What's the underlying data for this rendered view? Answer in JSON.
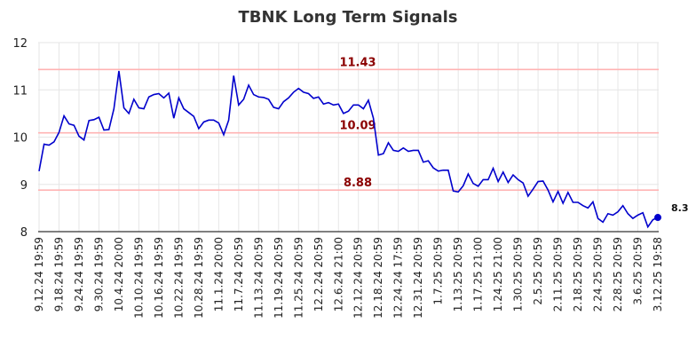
{
  "chart_data": {
    "type": "line",
    "title": "TBNK Long Term Signals",
    "ylim": [
      8,
      12
    ],
    "yticks": [
      "8",
      "9",
      "10",
      "11",
      "12"
    ],
    "grid": true,
    "line_color": "#0000cc",
    "reference_color": "#ffb3b3",
    "reference_label_color": "#8b0000",
    "reference_lines": [
      {
        "value": 11.43,
        "label": "11.43"
      },
      {
        "value": 10.09,
        "label": "10.09"
      },
      {
        "value": 8.88,
        "label": "8.88"
      }
    ],
    "last_value_label": "8.3",
    "xtick_labels": [
      "9.12.24 19:59",
      "9.18.24 19:59",
      "9.24.24 19:59",
      "9.30.24 19:59",
      "10.4.24 20:00",
      "10.10.24 19:59",
      "10.16.24 19:59",
      "10.22.24 19:59",
      "10.28.24 19:59",
      "11.1.24 20:00",
      "11.7.24 20:59",
      "11.13.24 20:59",
      "11.19.24 20:59",
      "11.25.24 20:59",
      "12.2.24 20:59",
      "12.6.24 21:00",
      "12.12.24 20:59",
      "12.18.24 20:59",
      "12.24.24 17:59",
      "12.31.24 20:59",
      "1.7.25 20:59",
      "1.13.25 20:59",
      "1.17.25 21:00",
      "1.24.25 21:00",
      "1.30.25 20:59",
      "2.5.25 20:59",
      "2.11.25 20:59",
      "2.18.25 20:59",
      "2.24.25 20:59",
      "2.28.25 20:59",
      "3.6.25 20:59",
      "3.12.25 19:58"
    ],
    "values": [
      9.28,
      9.85,
      9.83,
      9.9,
      10.1,
      10.45,
      10.28,
      10.25,
      10.02,
      9.94,
      10.35,
      10.37,
      10.42,
      10.15,
      10.16,
      10.6,
      11.4,
      10.62,
      10.5,
      10.8,
      10.62,
      10.6,
      10.85,
      10.9,
      10.92,
      10.83,
      10.93,
      10.4,
      10.83,
      10.6,
      10.52,
      10.44,
      10.18,
      10.32,
      10.36,
      10.36,
      10.3,
      10.05,
      10.36,
      11.3,
      10.68,
      10.8,
      11.1,
      10.9,
      10.85,
      10.84,
      10.8,
      10.63,
      10.6,
      10.75,
      10.83,
      10.95,
      11.03,
      10.95,
      10.92,
      10.82,
      10.85,
      10.7,
      10.73,
      10.68,
      10.7,
      10.5,
      10.55,
      10.68,
      10.68,
      10.6,
      10.78,
      10.4,
      9.62,
      9.65,
      9.88,
      9.72,
      9.7,
      9.77,
      9.7,
      9.72,
      9.72,
      9.47,
      9.5,
      9.35,
      9.28,
      9.3,
      9.3,
      8.86,
      8.84,
      8.97,
      9.22,
      9.02,
      8.96,
      9.1,
      9.1,
      9.34,
      9.06,
      9.26,
      9.04,
      9.2,
      9.1,
      9.03,
      8.75,
      8.9,
      9.06,
      9.07,
      8.88,
      8.63,
      8.85,
      8.6,
      8.83,
      8.62,
      8.62,
      8.55,
      8.5,
      8.63,
      8.28,
      8.2,
      8.38,
      8.35,
      8.42,
      8.55,
      8.38,
      8.28,
      8.35,
      8.4,
      8.1,
      8.25,
      8.3
    ]
  }
}
